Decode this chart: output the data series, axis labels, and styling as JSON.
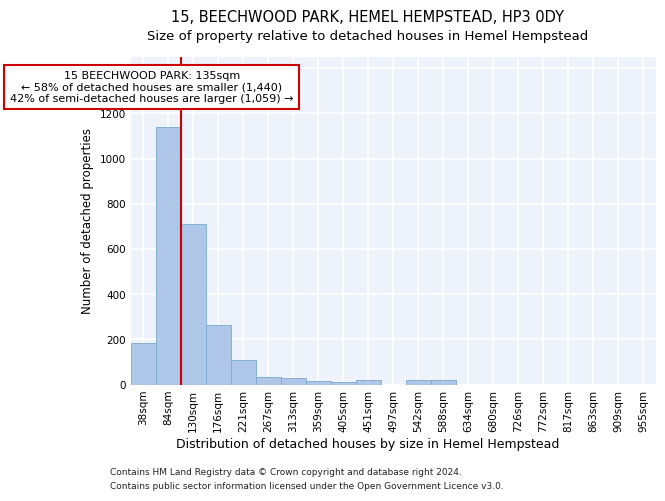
{
  "title": "15, BEECHWOOD PARK, HEMEL HEMPSTEAD, HP3 0DY",
  "subtitle": "Size of property relative to detached houses in Hemel Hempstead",
  "xlabel": "Distribution of detached houses by size in Hemel Hempstead",
  "ylabel": "Number of detached properties",
  "footer_line1": "Contains HM Land Registry data © Crown copyright and database right 2024.",
  "footer_line2": "Contains public sector information licensed under the Open Government Licence v3.0.",
  "bin_labels": [
    "38sqm",
    "84sqm",
    "130sqm",
    "176sqm",
    "221sqm",
    "267sqm",
    "313sqm",
    "359sqm",
    "405sqm",
    "451sqm",
    "497sqm",
    "542sqm",
    "588sqm",
    "634sqm",
    "680sqm",
    "726sqm",
    "772sqm",
    "817sqm",
    "863sqm",
    "909sqm",
    "955sqm"
  ],
  "bar_values": [
    185,
    1140,
    710,
    265,
    108,
    35,
    28,
    15,
    12,
    18,
    0,
    18,
    18,
    0,
    0,
    0,
    0,
    0,
    0,
    0,
    0
  ],
  "bar_color": "#aec6e8",
  "bar_edge_color": "#7aaad0",
  "ylim": [
    0,
    1450
  ],
  "yticks": [
    0,
    200,
    400,
    600,
    800,
    1000,
    1200,
    1400
  ],
  "property_label": "15 BEECHWOOD PARK: 135sqm",
  "annotation_line1": "← 58% of detached houses are smaller (1,440)",
  "annotation_line2": "42% of semi-detached houses are larger (1,059) →",
  "vline_color": "#cc0000",
  "vline_position": 1.5,
  "background_color": "#eef2fb",
  "grid_color": "#ffffff",
  "title_fontsize": 10.5,
  "subtitle_fontsize": 9.5,
  "ylabel_fontsize": 8.5,
  "xlabel_fontsize": 9,
  "tick_fontsize": 7.5,
  "annot_fontsize": 8,
  "footer_fontsize": 6.5
}
